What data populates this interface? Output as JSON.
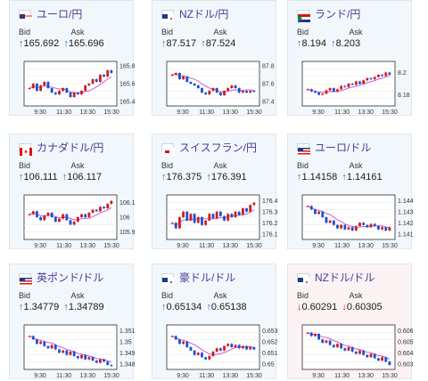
{
  "cards": [
    {
      "title": "ユーロ/円",
      "flag": "eu",
      "dir": "up",
      "bid_label": "Bid",
      "ask_label": "Ask",
      "bid": "165.692",
      "ask": "165.696",
      "chart_data": {
        "type": "candlestick",
        "y_ticks": [
          "165.8",
          "165.6",
          "165.4"
        ],
        "y_range": [
          165.35,
          165.85
        ],
        "x_ticks": [
          "9:30",
          "11:30",
          "13:30",
          "15:30"
        ],
        "series": [
          {
            "values": [
              165.55,
              165.6,
              165.52,
              165.58,
              165.62,
              165.55,
              165.5,
              165.48,
              165.52,
              165.55,
              165.5,
              165.45,
              165.5,
              165.48,
              165.52,
              165.58,
              165.6,
              165.65,
              165.62,
              165.7,
              165.68,
              165.75,
              165.72
            ]
          }
        ]
      }
    },
    {
      "title": "NZドル/円",
      "flag": "nz",
      "dir": "up",
      "bid_label": "Bid",
      "ask_label": "Ask",
      "bid": "87.517",
      "ask": "87.524",
      "chart_data": {
        "type": "candlestick",
        "y_ticks": [
          "87.8",
          "87.6",
          "87.4"
        ],
        "y_range": [
          87.35,
          87.85
        ],
        "x_ticks": [
          "9:30",
          "11:30",
          "13:30",
          "15:30"
        ],
        "series": [
          {
            "values": [
              87.7,
              87.72,
              87.65,
              87.68,
              87.62,
              87.6,
              87.58,
              87.55,
              87.5,
              87.48,
              87.52,
              87.55,
              87.5,
              87.47,
              87.52,
              87.55,
              87.58,
              87.55,
              87.5,
              87.52,
              87.5,
              87.52,
              87.51
            ]
          }
        ]
      }
    },
    {
      "title": "ランド/円",
      "flag": "za",
      "dir": "up",
      "bid_label": "Bid",
      "ask_label": "Ask",
      "bid": "8.194",
      "ask": "8.203",
      "chart_data": {
        "type": "candlestick",
        "y_ticks": [
          "8.2",
          "8.18"
        ],
        "y_range": [
          8.17,
          8.21
        ],
        "x_ticks": [
          "9:30",
          "11:30",
          "13:30",
          "15:30"
        ],
        "series": [
          {
            "values": [
              8.185,
              8.183,
              8.182,
              8.18,
              8.181,
              8.184,
              8.186,
              8.183,
              8.185,
              8.188,
              8.187,
              8.19,
              8.189,
              8.192,
              8.19,
              8.193,
              8.195,
              8.194,
              8.196,
              8.198,
              8.197,
              8.2,
              8.198
            ]
          }
        ]
      }
    },
    {
      "title": "カナダドル/円",
      "flag": "ca",
      "dir": "up",
      "bid_label": "Bid",
      "ask_label": "Ask",
      "bid": "106.111",
      "ask": "106.117",
      "chart_data": {
        "type": "candlestick",
        "y_ticks": [
          "106.1",
          "106",
          "105.9"
        ],
        "y_range": [
          105.85,
          106.15
        ],
        "x_ticks": [
          "9:30",
          "11:30",
          "13:30",
          "15:30"
        ],
        "series": [
          {
            "values": [
              106.02,
              106.04,
              106.0,
              105.98,
              106.01,
              106.03,
              106.0,
              105.97,
              105.99,
              106.02,
              105.98,
              105.95,
              105.97,
              106.0,
              106.02,
              106.0,
              106.03,
              106.05,
              106.04,
              106.07,
              106.06,
              106.09,
              106.11
            ]
          }
        ]
      }
    },
    {
      "title": "スイスフラン/円",
      "flag": "ch",
      "dir": "up",
      "bid_label": "Bid",
      "ask_label": "Ask",
      "bid": "176.375",
      "ask": "176.391",
      "chart_data": {
        "type": "candlestick",
        "y_ticks": [
          "176.4",
          "176.3",
          "176.2",
          "176.1"
        ],
        "y_range": [
          176.05,
          176.45
        ],
        "x_ticks": [
          "9:30",
          "11:30",
          "13:30",
          "15:30"
        ],
        "series": [
          {
            "values": [
              176.2,
              176.15,
              176.25,
              176.3,
              176.22,
              176.28,
              176.2,
              176.25,
              176.18,
              176.22,
              176.28,
              176.24,
              176.3,
              176.26,
              176.22,
              176.28,
              176.25,
              176.3,
              176.27,
              176.33,
              176.3,
              176.36,
              176.38
            ]
          }
        ]
      }
    },
    {
      "title": "ユーロ/ドル",
      "flag": "us",
      "dir": "up",
      "bid_label": "Bid",
      "ask_label": "Ask",
      "bid": "1.14158",
      "ask": "1.14161",
      "chart_data": {
        "type": "candlestick",
        "y_ticks": [
          "1.144",
          "1.143",
          "1.142",
          "1.141"
        ],
        "y_range": [
          1.1405,
          1.1445
        ],
        "x_ticks": [
          "9:30",
          "11:30",
          "13:30",
          "15:30"
        ],
        "series": [
          {
            "values": [
              1.1435,
              1.1432,
              1.1428,
              1.143,
              1.1425,
              1.142,
              1.1422,
              1.1418,
              1.1415,
              1.1418,
              1.1414,
              1.1416,
              1.1413,
              1.1417,
              1.142,
              1.1418,
              1.1416,
              1.1419,
              1.1417,
              1.1414,
              1.1416,
              1.1413,
              1.1416
            ]
          }
        ]
      }
    },
    {
      "title": "英ポンド/ドル",
      "flag": "us",
      "dir": "up",
      "bid_label": "Bid",
      "ask_label": "Ask",
      "bid": "1.34779",
      "ask": "1.34789",
      "chart_data": {
        "type": "candlestick",
        "y_ticks": [
          "1.351",
          "1.35",
          "1.349",
          "1.348"
        ],
        "y_range": [
          1.3475,
          1.3515
        ],
        "x_ticks": [
          "9:30",
          "11:30",
          "13:30",
          "15:30"
        ],
        "series": [
          {
            "values": [
              1.3505,
              1.3502,
              1.3498,
              1.35,
              1.3496,
              1.3494,
              1.3497,
              1.3493,
              1.349,
              1.3492,
              1.3488,
              1.3491,
              1.3487,
              1.3485,
              1.3488,
              1.3484,
              1.3486,
              1.3483,
              1.3481,
              1.3484,
              1.3482,
              1.3479,
              1.3478
            ]
          }
        ]
      }
    },
    {
      "title": "豪ドル/ドル",
      "flag": "au",
      "dir": "up",
      "bid_label": "Bid",
      "ask_label": "Ask",
      "bid": "0.65134",
      "ask": "0.65138",
      "chart_data": {
        "type": "candlestick",
        "y_ticks": [
          "0.653",
          "0.652",
          "0.651",
          "0.65"
        ],
        "y_range": [
          0.6495,
          0.6535
        ],
        "x_ticks": [
          "9:30",
          "11:30",
          "13:30",
          "15:30"
        ],
        "series": [
          {
            "values": [
              0.6525,
              0.6522,
              0.6518,
              0.652,
              0.6515,
              0.6512,
              0.6508,
              0.651,
              0.6506,
              0.6504,
              0.6507,
              0.6511,
              0.6514,
              0.6512,
              0.6516,
              0.6518,
              0.6515,
              0.6517,
              0.6514,
              0.6516,
              0.6513,
              0.6515,
              0.6513
            ]
          }
        ]
      }
    },
    {
      "title": "NZドル/ドル",
      "flag": "nz",
      "dir": "down",
      "bid_label": "Bid",
      "ask_label": "Ask",
      "bid": "0.60291",
      "ask": "0.60305",
      "chart_data": {
        "type": "candlestick",
        "y_ticks": [
          "0.606",
          "0.605",
          "0.604",
          "0.603"
        ],
        "y_range": [
          0.6025,
          0.6065
        ],
        "x_ticks": [
          "9:30",
          "11:30",
          "13:30",
          "15:30"
        ],
        "series": [
          {
            "values": [
              0.6058,
              0.6055,
              0.6057,
              0.6052,
              0.6049,
              0.6051,
              0.6047,
              0.6045,
              0.6048,
              0.6044,
              0.6042,
              0.6045,
              0.6041,
              0.6039,
              0.6042,
              0.6038,
              0.6036,
              0.6039,
              0.6035,
              0.6033,
              0.6036,
              0.6032,
              0.6029
            ]
          }
        ]
      }
    }
  ]
}
